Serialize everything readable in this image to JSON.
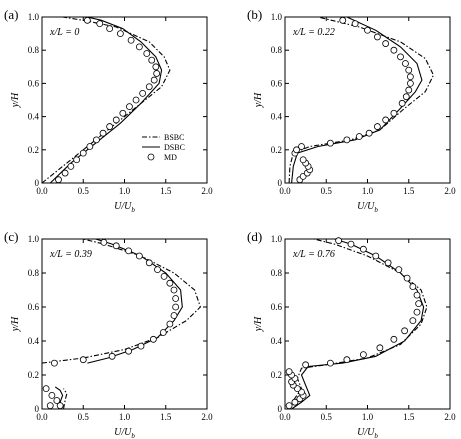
{
  "chart_data": [
    {
      "type": "line",
      "panel_label": "(a)",
      "annotation": "x/L = 0",
      "xlabel": "U/U",
      "xlabel_sub": "b",
      "ylabel": "y/H",
      "xlim": [
        0,
        2.0
      ],
      "ylim": [
        0,
        1.0
      ],
      "x_ticks": [
        "0.0",
        "0.5",
        "1.0",
        "1.5",
        "2.0"
      ],
      "y_ticks": [
        "0",
        "0.2",
        "0.4",
        "0.6",
        "0.8",
        "1.0"
      ],
      "legend": {
        "position": "bottom-right",
        "entries": [
          "BSBC",
          "DSBC",
          "MD"
        ]
      },
      "series": [
        {
          "name": "BSBC",
          "style": "dash-dot",
          "points": [
            [
              0.0,
              0.0
            ],
            [
              0.3,
              0.12
            ],
            [
              0.6,
              0.24
            ],
            [
              0.9,
              0.36
            ],
            [
              1.2,
              0.48
            ],
            [
              1.45,
              0.58
            ],
            [
              1.55,
              0.68
            ],
            [
              1.48,
              0.76
            ],
            [
              1.3,
              0.85
            ],
            [
              0.9,
              0.94
            ],
            [
              0.5,
              0.98
            ],
            [
              0.25,
              1.0
            ]
          ]
        },
        {
          "name": "DSBC",
          "style": "solid",
          "points": [
            [
              0.1,
              0.0
            ],
            [
              0.35,
              0.12
            ],
            [
              0.65,
              0.24
            ],
            [
              0.95,
              0.36
            ],
            [
              1.2,
              0.48
            ],
            [
              1.42,
              0.6
            ],
            [
              1.45,
              0.68
            ],
            [
              1.38,
              0.76
            ],
            [
              1.2,
              0.85
            ],
            [
              0.98,
              0.93
            ],
            [
              0.72,
              0.98
            ],
            [
              0.55,
              1.0
            ]
          ]
        },
        {
          "name": "MD",
          "style": "markers",
          "points": [
            [
              0.2,
              0.02
            ],
            [
              0.28,
              0.06
            ],
            [
              0.35,
              0.1
            ],
            [
              0.42,
              0.14
            ],
            [
              0.5,
              0.18
            ],
            [
              0.58,
              0.22
            ],
            [
              0.66,
              0.26
            ],
            [
              0.74,
              0.3
            ],
            [
              0.82,
              0.34
            ],
            [
              0.9,
              0.38
            ],
            [
              0.98,
              0.42
            ],
            [
              1.06,
              0.46
            ],
            [
              1.14,
              0.5
            ],
            [
              1.22,
              0.54
            ],
            [
              1.3,
              0.58
            ],
            [
              1.36,
              0.62
            ],
            [
              1.39,
              0.66
            ],
            [
              1.38,
              0.7
            ],
            [
              1.33,
              0.74
            ],
            [
              1.27,
              0.78
            ],
            [
              1.18,
              0.82
            ],
            [
              1.08,
              0.86
            ],
            [
              0.95,
              0.9
            ],
            [
              0.82,
              0.93
            ],
            [
              0.7,
              0.96
            ],
            [
              0.55,
              0.98
            ]
          ]
        }
      ]
    },
    {
      "type": "line",
      "panel_label": "(b)",
      "annotation": "x/L = 0.22",
      "xlabel": "U/U",
      "xlabel_sub": "b",
      "ylabel": "y/H",
      "xlim": [
        0,
        2.0
      ],
      "ylim": [
        0,
        1.0
      ],
      "x_ticks": [
        "0.0",
        "0.5",
        "1.0",
        "1.5",
        "2.0"
      ],
      "y_ticks": [
        "0",
        "0.2",
        "0.4",
        "0.6",
        "0.8",
        "1.0"
      ],
      "series": [
        {
          "name": "BSBC",
          "style": "dash-dot",
          "points": [
            [
              0.05,
              0.0
            ],
            [
              0.06,
              0.1
            ],
            [
              0.1,
              0.18
            ],
            [
              0.3,
              0.22
            ],
            [
              0.8,
              0.26
            ],
            [
              1.15,
              0.32
            ],
            [
              1.45,
              0.45
            ],
            [
              1.7,
              0.55
            ],
            [
              1.8,
              0.65
            ],
            [
              1.7,
              0.75
            ],
            [
              1.4,
              0.85
            ],
            [
              0.9,
              0.94
            ],
            [
              0.4,
              1.0
            ]
          ]
        },
        {
          "name": "DSBC",
          "style": "solid",
          "points": [
            [
              0.08,
              0.0
            ],
            [
              0.1,
              0.1
            ],
            [
              0.15,
              0.18
            ],
            [
              0.4,
              0.22
            ],
            [
              0.85,
              0.26
            ],
            [
              1.15,
              0.32
            ],
            [
              1.4,
              0.45
            ],
            [
              1.58,
              0.55
            ],
            [
              1.66,
              0.62
            ],
            [
              1.6,
              0.72
            ],
            [
              1.4,
              0.82
            ],
            [
              1.1,
              0.92
            ],
            [
              0.75,
              1.0
            ]
          ]
        },
        {
          "name": "MD",
          "style": "markers",
          "points": [
            [
              0.18,
              0.02
            ],
            [
              0.22,
              0.04
            ],
            [
              0.27,
              0.06
            ],
            [
              0.3,
              0.08
            ],
            [
              0.28,
              0.1
            ],
            [
              0.25,
              0.12
            ],
            [
              0.22,
              0.14
            ],
            [
              0.12,
              0.18
            ],
            [
              0.14,
              0.2
            ],
            [
              0.2,
              0.22
            ],
            [
              0.55,
              0.24
            ],
            [
              0.75,
              0.26
            ],
            [
              0.9,
              0.28
            ],
            [
              1.02,
              0.3
            ],
            [
              1.12,
              0.34
            ],
            [
              1.22,
              0.38
            ],
            [
              1.32,
              0.42
            ],
            [
              1.42,
              0.48
            ],
            [
              1.47,
              0.52
            ],
            [
              1.5,
              0.56
            ],
            [
              1.52,
              0.6
            ],
            [
              1.52,
              0.64
            ],
            [
              1.5,
              0.68
            ],
            [
              1.46,
              0.72
            ],
            [
              1.4,
              0.76
            ],
            [
              1.32,
              0.8
            ],
            [
              1.22,
              0.84
            ],
            [
              1.12,
              0.88
            ],
            [
              1.0,
              0.92
            ],
            [
              0.85,
              0.96
            ],
            [
              0.7,
              0.98
            ]
          ]
        }
      ]
    },
    {
      "type": "line",
      "panel_label": "(c)",
      "annotation": "x/L = 0.39",
      "xlabel": "U/U",
      "xlabel_sub": "b",
      "ylabel": "y/H",
      "xlim": [
        0,
        2.0
      ],
      "ylim": [
        0,
        1.0
      ],
      "x_ticks": [
        "0.0",
        "0.5",
        "1.0",
        "1.5",
        "2.0"
      ],
      "y_ticks": [
        "0",
        "0.2",
        "0.4",
        "0.6",
        "0.8",
        "1.0"
      ],
      "series": [
        {
          "name": "BSBC",
          "style": "dash-dot",
          "points": [
            [
              0.0,
              0.27
            ],
            [
              0.5,
              0.3
            ],
            [
              1.0,
              0.35
            ],
            [
              1.4,
              0.42
            ],
            [
              1.75,
              0.52
            ],
            [
              1.92,
              0.6
            ],
            [
              1.85,
              0.7
            ],
            [
              1.6,
              0.8
            ],
            [
              1.2,
              0.9
            ],
            [
              0.75,
              0.97
            ],
            [
              0.5,
              1.0
            ]
          ]
        },
        {
          "name": "DSBC",
          "style": "solid",
          "points": [
            [
              0.55,
              0.27
            ],
            [
              0.8,
              0.3
            ],
            [
              1.1,
              0.35
            ],
            [
              1.4,
              0.42
            ],
            [
              1.6,
              0.52
            ],
            [
              1.7,
              0.6
            ],
            [
              1.68,
              0.7
            ],
            [
              1.5,
              0.8
            ],
            [
              1.2,
              0.9
            ],
            [
              0.85,
              0.97
            ],
            [
              0.65,
              1.0
            ]
          ]
        },
        {
          "name": "DSBC-lower",
          "style": "solid",
          "points": [
            [
              0.2,
              0.0
            ],
            [
              0.22,
              0.04
            ],
            [
              0.25,
              0.08
            ],
            [
              0.22,
              0.11
            ],
            [
              0.16,
              0.13
            ]
          ]
        },
        {
          "name": "BSBC-lower",
          "style": "dash-dot",
          "points": [
            [
              0.26,
              0.0
            ],
            [
              0.28,
              0.05
            ],
            [
              0.3,
              0.09
            ],
            [
              0.26,
              0.12
            ]
          ]
        },
        {
          "name": "MD",
          "style": "markers",
          "points": [
            [
              0.15,
              0.27
            ],
            [
              0.5,
              0.29
            ],
            [
              0.85,
              0.31
            ],
            [
              1.05,
              0.34
            ],
            [
              1.2,
              0.37
            ],
            [
              1.35,
              0.41
            ],
            [
              1.47,
              0.45
            ],
            [
              1.55,
              0.5
            ],
            [
              1.6,
              0.55
            ],
            [
              1.62,
              0.6
            ],
            [
              1.62,
              0.65
            ],
            [
              1.6,
              0.7
            ],
            [
              1.55,
              0.74
            ],
            [
              1.48,
              0.78
            ],
            [
              1.4,
              0.82
            ],
            [
              1.3,
              0.86
            ],
            [
              1.18,
              0.9
            ],
            [
              1.05,
              0.93
            ],
            [
              0.9,
              0.96
            ],
            [
              0.75,
              0.98
            ],
            [
              0.05,
              0.12
            ],
            [
              0.12,
              0.08
            ],
            [
              0.18,
              0.05
            ],
            [
              0.22,
              0.02
            ],
            [
              0.1,
              0.02
            ]
          ]
        }
      ]
    },
    {
      "type": "line",
      "panel_label": "(d)",
      "annotation": "x/L = 0.76",
      "xlabel": "U/U",
      "xlabel_sub": "b",
      "ylabel": "y/H",
      "xlim": [
        0,
        2.0
      ],
      "ylim": [
        0,
        1.0
      ],
      "x_ticks": [
        "0.0",
        "0.5",
        "1.0",
        "1.5",
        "2.0"
      ],
      "y_ticks": [
        "0",
        "0.2",
        "0.4",
        "0.6",
        "0.8",
        "1.0"
      ],
      "series": [
        {
          "name": "BSBC",
          "style": "dash-dot",
          "points": [
            [
              0.05,
              0.0
            ],
            [
              0.1,
              0.05
            ],
            [
              0.2,
              0.12
            ],
            [
              0.15,
              0.18
            ],
            [
              0.2,
              0.24
            ],
            [
              0.5,
              0.26
            ],
            [
              1.0,
              0.3
            ],
            [
              1.4,
              0.38
            ],
            [
              1.65,
              0.5
            ],
            [
              1.72,
              0.6
            ],
            [
              1.65,
              0.7
            ],
            [
              1.4,
              0.8
            ],
            [
              1.0,
              0.9
            ],
            [
              0.6,
              0.97
            ],
            [
              0.35,
              1.0
            ]
          ]
        },
        {
          "name": "DSBC",
          "style": "solid",
          "points": [
            [
              0.08,
              0.0
            ],
            [
              0.2,
              0.04
            ],
            [
              0.3,
              0.08
            ],
            [
              0.25,
              0.14
            ],
            [
              0.2,
              0.2
            ],
            [
              0.28,
              0.25
            ],
            [
              0.7,
              0.27
            ],
            [
              1.1,
              0.31
            ],
            [
              1.45,
              0.4
            ],
            [
              1.65,
              0.52
            ],
            [
              1.68,
              0.6
            ],
            [
              1.6,
              0.7
            ],
            [
              1.4,
              0.8
            ],
            [
              1.1,
              0.9
            ],
            [
              0.8,
              0.97
            ],
            [
              0.6,
              1.0
            ]
          ]
        },
        {
          "name": "MD",
          "style": "markers",
          "points": [
            [
              0.05,
              0.02
            ],
            [
              0.12,
              0.04
            ],
            [
              0.18,
              0.06
            ],
            [
              0.22,
              0.08
            ],
            [
              0.2,
              0.1
            ],
            [
              0.15,
              0.12
            ],
            [
              0.1,
              0.14
            ],
            [
              0.08,
              0.16
            ],
            [
              0.12,
              0.18
            ],
            [
              0.08,
              0.2
            ],
            [
              0.05,
              0.22
            ],
            [
              0.25,
              0.26
            ],
            [
              0.55,
              0.27
            ],
            [
              0.75,
              0.29
            ],
            [
              0.95,
              0.32
            ],
            [
              1.15,
              0.36
            ],
            [
              1.32,
              0.41
            ],
            [
              1.45,
              0.46
            ],
            [
              1.55,
              0.52
            ],
            [
              1.6,
              0.57
            ],
            [
              1.62,
              0.62
            ],
            [
              1.6,
              0.67
            ],
            [
              1.55,
              0.72
            ],
            [
              1.48,
              0.77
            ],
            [
              1.38,
              0.82
            ],
            [
              1.25,
              0.86
            ],
            [
              1.1,
              0.9
            ],
            [
              0.95,
              0.94
            ],
            [
              0.8,
              0.97
            ],
            [
              0.65,
              0.99
            ]
          ]
        }
      ]
    }
  ]
}
